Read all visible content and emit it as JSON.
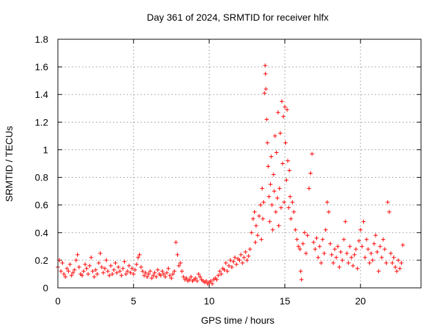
{
  "chart_data": {
    "type": "scatter",
    "title": "Day 361 of 2024, SRMTID for receiver hlfx",
    "xlabel": "GPS time / hours",
    "ylabel": "SRMTID / TECUs",
    "xlim": [
      0,
      24
    ],
    "ylim": [
      0,
      1.8
    ],
    "x_ticks": [
      0,
      5,
      10,
      15,
      20
    ],
    "x_tick_labels": [
      "0",
      "5",
      "10",
      "15",
      "20"
    ],
    "y_ticks": [
      0,
      0.2,
      0.4,
      0.6,
      0.8,
      1.0,
      1.2,
      1.4,
      1.6,
      1.8
    ],
    "y_tick_labels": [
      "0",
      "0.2",
      "0.4",
      "0.6",
      "0.8",
      "1",
      "1.2",
      "1.4",
      "1.6",
      "1.8"
    ],
    "grid": true,
    "marker": "+",
    "series": [
      {
        "name": "SRMTID",
        "color": "#ff0000",
        "points": [
          [
            0.0,
            0.15
          ],
          [
            0.1,
            0.2
          ],
          [
            0.2,
            0.12
          ],
          [
            0.3,
            0.18
          ],
          [
            0.4,
            0.1
          ],
          [
            0.5,
            0.08
          ],
          [
            0.6,
            0.14
          ],
          [
            0.7,
            0.12
          ],
          [
            0.8,
            0.17
          ],
          [
            0.9,
            0.09
          ],
          [
            1.0,
            0.11
          ],
          [
            1.1,
            0.13
          ],
          [
            1.2,
            0.2
          ],
          [
            1.3,
            0.24
          ],
          [
            1.4,
            0.15
          ],
          [
            1.5,
            0.1
          ],
          [
            1.6,
            0.09
          ],
          [
            1.7,
            0.12
          ],
          [
            1.8,
            0.17
          ],
          [
            1.9,
            0.14
          ],
          [
            2.0,
            0.1
          ],
          [
            2.1,
            0.16
          ],
          [
            2.2,
            0.22
          ],
          [
            2.3,
            0.12
          ],
          [
            2.4,
            0.08
          ],
          [
            2.5,
            0.13
          ],
          [
            2.6,
            0.1
          ],
          [
            2.7,
            0.18
          ],
          [
            2.8,
            0.25
          ],
          [
            2.9,
            0.15
          ],
          [
            3.0,
            0.11
          ],
          [
            3.1,
            0.14
          ],
          [
            3.2,
            0.2
          ],
          [
            3.3,
            0.12
          ],
          [
            3.4,
            0.09
          ],
          [
            3.5,
            0.16
          ],
          [
            3.6,
            0.1
          ],
          [
            3.7,
            0.13
          ],
          [
            3.8,
            0.18
          ],
          [
            3.9,
            0.11
          ],
          [
            4.0,
            0.15
          ],
          [
            4.1,
            0.12
          ],
          [
            4.2,
            0.09
          ],
          [
            4.3,
            0.14
          ],
          [
            4.4,
            0.19
          ],
          [
            4.5,
            0.1
          ],
          [
            4.6,
            0.12
          ],
          [
            4.7,
            0.16
          ],
          [
            4.8,
            0.11
          ],
          [
            4.9,
            0.14
          ],
          [
            5.0,
            0.1
          ],
          [
            5.1,
            0.13
          ],
          [
            5.2,
            0.17
          ],
          [
            5.3,
            0.22
          ],
          [
            5.4,
            0.24
          ],
          [
            5.5,
            0.15
          ],
          [
            5.6,
            0.12
          ],
          [
            5.7,
            0.09
          ],
          [
            5.8,
            0.11
          ],
          [
            5.9,
            0.08
          ],
          [
            6.0,
            0.1
          ],
          [
            6.1,
            0.12
          ],
          [
            6.2,
            0.07
          ],
          [
            6.3,
            0.09
          ],
          [
            6.4,
            0.11
          ],
          [
            6.5,
            0.08
          ],
          [
            6.6,
            0.13
          ],
          [
            6.7,
            0.1
          ],
          [
            6.8,
            0.09
          ],
          [
            6.9,
            0.12
          ],
          [
            7.0,
            0.1
          ],
          [
            7.1,
            0.08
          ],
          [
            7.2,
            0.11
          ],
          [
            7.3,
            0.14
          ],
          [
            7.4,
            0.09
          ],
          [
            7.5,
            0.07
          ],
          [
            7.6,
            0.1
          ],
          [
            7.7,
            0.12
          ],
          [
            7.8,
            0.33
          ],
          [
            7.9,
            0.24
          ],
          [
            8.0,
            0.16
          ],
          [
            8.1,
            0.18
          ],
          [
            8.2,
            0.12
          ],
          [
            8.3,
            0.08
          ],
          [
            8.4,
            0.06
          ],
          [
            8.5,
            0.07
          ],
          [
            8.6,
            0.05
          ],
          [
            8.7,
            0.06
          ],
          [
            8.8,
            0.08
          ],
          [
            8.9,
            0.05
          ],
          [
            9.0,
            0.06
          ],
          [
            9.1,
            0.07
          ],
          [
            9.2,
            0.05
          ],
          [
            9.3,
            0.1
          ],
          [
            9.4,
            0.08
          ],
          [
            9.5,
            0.06
          ],
          [
            9.6,
            0.05
          ],
          [
            9.7,
            0.04
          ],
          [
            9.8,
            0.05
          ],
          [
            9.9,
            0.03
          ],
          [
            10.0,
            0.04
          ],
          [
            10.1,
            0.05
          ],
          [
            10.2,
            0.03
          ],
          [
            10.3,
            0.06
          ],
          [
            10.4,
            0.07
          ],
          [
            10.5,
            0.06
          ],
          [
            10.6,
            0.09
          ],
          [
            10.7,
            0.12
          ],
          [
            10.8,
            0.1
          ],
          [
            10.9,
            0.14
          ],
          [
            11.0,
            0.13
          ],
          [
            11.1,
            0.18
          ],
          [
            11.2,
            0.12
          ],
          [
            11.3,
            0.16
          ],
          [
            11.4,
            0.2
          ],
          [
            11.5,
            0.15
          ],
          [
            11.6,
            0.19
          ],
          [
            11.7,
            0.22
          ],
          [
            11.8,
            0.17
          ],
          [
            11.9,
            0.21
          ],
          [
            12.0,
            0.2
          ],
          [
            12.1,
            0.24
          ],
          [
            12.2,
            0.18
          ],
          [
            12.3,
            0.22
          ],
          [
            12.4,
            0.26
          ],
          [
            12.5,
            0.2
          ],
          [
            12.6,
            0.23
          ],
          [
            12.7,
            0.28
          ],
          [
            12.8,
            0.4
          ],
          [
            12.9,
            0.5
          ],
          [
            13.0,
            0.55
          ],
          [
            13.05,
            0.33
          ],
          [
            13.1,
            0.45
          ],
          [
            13.2,
            0.38
          ],
          [
            13.3,
            0.52
          ],
          [
            13.4,
            0.6
          ],
          [
            13.45,
            0.35
          ],
          [
            13.5,
            0.72
          ],
          [
            13.55,
            0.5
          ],
          [
            13.6,
            0.62
          ],
          [
            13.65,
            1.41
          ],
          [
            13.7,
            1.61
          ],
          [
            13.72,
            1.55
          ],
          [
            13.75,
            1.44
          ],
          [
            13.8,
            1.22
          ],
          [
            13.85,
            1.05
          ],
          [
            13.9,
            0.88
          ],
          [
            13.95,
            0.66
          ],
          [
            14.0,
            0.48
          ],
          [
            14.05,
            0.75
          ],
          [
            14.1,
            0.95
          ],
          [
            14.15,
            0.6
          ],
          [
            14.2,
            0.42
          ],
          [
            14.25,
            0.82
          ],
          [
            14.3,
            0.7
          ],
          [
            14.35,
            1.1
          ],
          [
            14.4,
            0.55
          ],
          [
            14.45,
            0.98
          ],
          [
            14.5,
            0.65
          ],
          [
            14.55,
            1.27
          ],
          [
            14.6,
            0.45
          ],
          [
            14.65,
            0.72
          ],
          [
            14.7,
            1.12
          ],
          [
            14.75,
            0.58
          ],
          [
            14.8,
            1.35
          ],
          [
            14.85,
            0.9
          ],
          [
            14.9,
            1.24
          ],
          [
            14.95,
            0.62
          ],
          [
            15.0,
            1.31
          ],
          [
            15.05,
            1.05
          ],
          [
            15.1,
            0.78
          ],
          [
            15.15,
            1.29
          ],
          [
            15.2,
            0.92
          ],
          [
            15.25,
            0.58
          ],
          [
            15.3,
            0.85
          ],
          [
            15.35,
            0.66
          ],
          [
            15.4,
            0.5
          ],
          [
            15.5,
            0.62
          ],
          [
            15.6,
            0.55
          ],
          [
            15.7,
            0.42
          ],
          [
            15.8,
            0.35
          ],
          [
            15.9,
            0.3
          ],
          [
            16.0,
            0.28
          ],
          [
            16.05,
            0.12
          ],
          [
            16.1,
            0.06
          ],
          [
            16.2,
            0.32
          ],
          [
            16.3,
            0.4
          ],
          [
            16.4,
            0.25
          ],
          [
            16.5,
            0.38
          ],
          [
            16.6,
            0.72
          ],
          [
            16.7,
            0.83
          ],
          [
            16.8,
            0.97
          ],
          [
            16.9,
            0.33
          ],
          [
            17.0,
            0.28
          ],
          [
            17.1,
            0.36
          ],
          [
            17.2,
            0.22
          ],
          [
            17.3,
            0.3
          ],
          [
            17.4,
            0.18
          ],
          [
            17.5,
            0.35
          ],
          [
            17.6,
            0.25
          ],
          [
            17.7,
            0.42
          ],
          [
            17.8,
            0.62
          ],
          [
            17.9,
            0.55
          ],
          [
            18.0,
            0.32
          ],
          [
            18.1,
            0.24
          ],
          [
            18.2,
            0.18
          ],
          [
            18.3,
            0.28
          ],
          [
            18.4,
            0.22
          ],
          [
            18.5,
            0.3
          ],
          [
            18.6,
            0.15
          ],
          [
            18.7,
            0.26
          ],
          [
            18.8,
            0.2
          ],
          [
            18.9,
            0.35
          ],
          [
            19.0,
            0.48
          ],
          [
            19.1,
            0.25
          ],
          [
            19.2,
            0.18
          ],
          [
            19.3,
            0.3
          ],
          [
            19.4,
            0.22
          ],
          [
            19.5,
            0.16
          ],
          [
            19.6,
            0.24
          ],
          [
            19.7,
            0.28
          ],
          [
            19.8,
            0.14
          ],
          [
            19.9,
            0.34
          ],
          [
            20.0,
            0.42
          ],
          [
            20.1,
            0.3
          ],
          [
            20.2,
            0.48
          ],
          [
            20.3,
            0.22
          ],
          [
            20.4,
            0.35
          ],
          [
            20.5,
            0.28
          ],
          [
            20.6,
            0.18
          ],
          [
            20.7,
            0.25
          ],
          [
            20.8,
            0.2
          ],
          [
            20.9,
            0.32
          ],
          [
            21.0,
            0.38
          ],
          [
            21.1,
            0.26
          ],
          [
            21.2,
            0.12
          ],
          [
            21.3,
            0.3
          ],
          [
            21.4,
            0.22
          ],
          [
            21.5,
            0.35
          ],
          [
            21.6,
            0.28
          ],
          [
            21.7,
            0.18
          ],
          [
            21.8,
            0.62
          ],
          [
            21.9,
            0.55
          ],
          [
            22.0,
            0.25
          ],
          [
            22.1,
            0.18
          ],
          [
            22.2,
            0.22
          ],
          [
            22.3,
            0.15
          ],
          [
            22.4,
            0.12
          ],
          [
            22.5,
            0.2
          ],
          [
            22.6,
            0.14
          ],
          [
            22.7,
            0.18
          ],
          [
            22.8,
            0.31
          ]
        ]
      }
    ]
  }
}
